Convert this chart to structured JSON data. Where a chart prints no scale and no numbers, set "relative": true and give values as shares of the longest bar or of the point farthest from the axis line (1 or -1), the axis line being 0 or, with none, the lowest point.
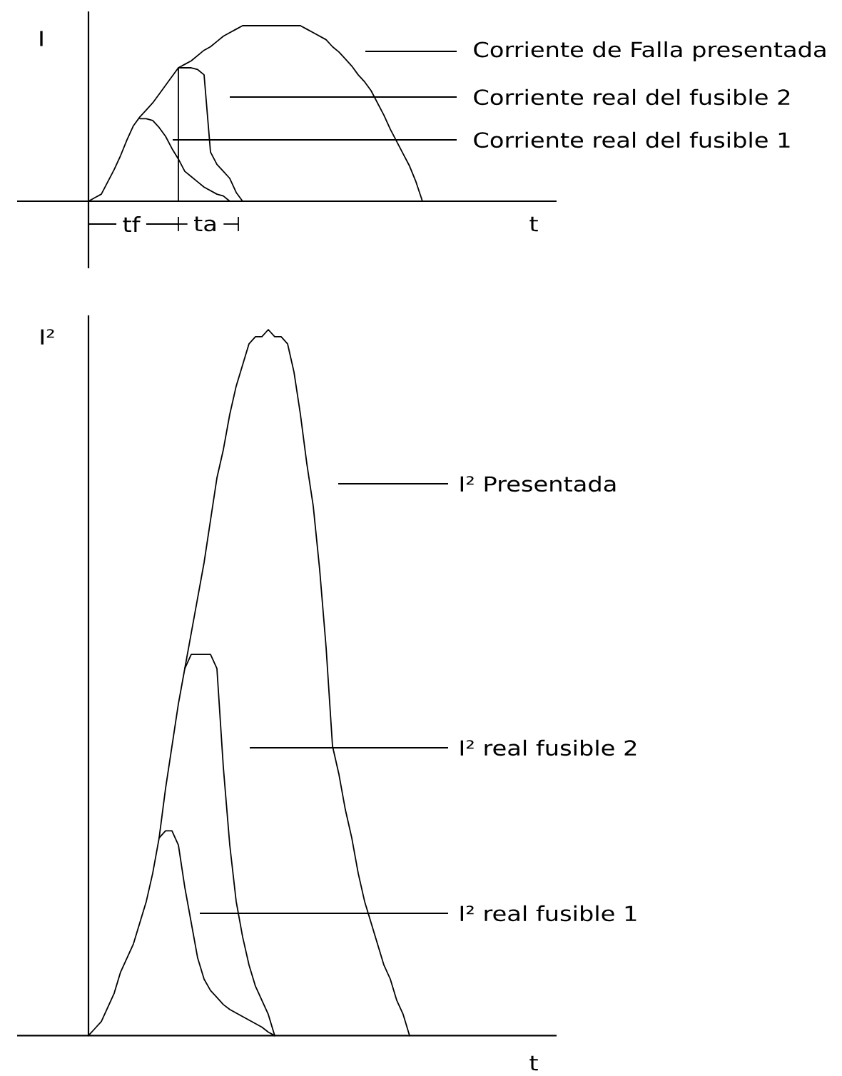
{
  "chart_data": [
    {
      "type": "line",
      "relative": true,
      "ylabel": "I",
      "xlabel": "t",
      "categories": [
        null,
        null,
        null,
        null,
        null,
        null,
        null,
        null,
        null,
        null,
        null,
        null,
        null,
        null,
        null,
        null,
        null,
        null,
        null,
        null,
        null,
        null,
        null,
        null,
        null,
        null,
        null,
        null,
        null,
        null,
        null,
        null,
        null,
        null,
        null,
        null,
        null,
        null,
        null,
        null,
        null,
        null,
        null,
        null,
        null,
        null,
        null,
        null,
        null,
        null,
        null,
        null,
        null,
        null,
        null,
        null,
        null,
        null
      ],
      "series": [
        {
          "name": "Corriente de Falla presentada",
          "color": "#000000",
          "values": [
            0,
            0.02,
            0.04,
            0.11,
            0.18,
            0.26,
            0.35,
            0.43,
            0.48,
            0.52,
            0.56,
            0.61,
            0.66,
            0.71,
            0.76,
            0.78,
            0.8,
            0.83,
            0.86,
            0.88,
            0.91,
            0.94,
            0.96,
            0.98,
            1,
            1,
            1,
            1,
            1,
            1,
            1,
            1,
            1,
            1,
            0.98,
            0.96,
            0.94,
            0.92,
            0.88,
            0.85,
            0.81,
            0.77,
            0.72,
            0.68,
            0.63,
            0.56,
            0.49,
            0.41,
            0.34,
            0.27,
            0.2,
            0.11,
            0,
            0,
            0,
            0,
            0,
            0
          ]
        },
        {
          "name": "Corriente real del fusible 2",
          "color": "#000000",
          "values": [
            null,
            null,
            null,
            null,
            null,
            null,
            null,
            null,
            null,
            null,
            null,
            null,
            null,
            null,
            0.76,
            0.76,
            0.76,
            0.75,
            0.72,
            0.28,
            0.21,
            0.17,
            0.13,
            0.05,
            0,
            null,
            null,
            null,
            null,
            null,
            null,
            null,
            null,
            null,
            null,
            null,
            null,
            null,
            null,
            null,
            null,
            null,
            null,
            null,
            null,
            null,
            null,
            null,
            null,
            null,
            null,
            null,
            null,
            null,
            null,
            null,
            null,
            null
          ]
        },
        {
          "name": "Corriente real del fusible 1",
          "color": "#000000",
          "values": [
            null,
            null,
            null,
            null,
            null,
            null,
            null,
            null,
            0.47,
            0.47,
            0.46,
            0.42,
            0.37,
            0.3,
            0.24,
            0.17,
            0.14,
            0.11,
            0.08,
            0.06,
            0.04,
            0.03,
            0,
            null,
            null,
            null,
            null,
            null,
            null,
            null,
            null,
            null,
            null,
            null,
            null,
            null,
            null,
            null,
            null,
            null,
            null,
            null,
            null,
            null,
            null,
            null,
            null,
            null,
            null,
            null,
            null,
            null,
            null,
            null,
            null,
            null,
            null,
            null
          ]
        }
      ],
      "annotations": [
        "tf",
        "ta"
      ]
    },
    {
      "type": "line",
      "relative": true,
      "ylabel": "I²",
      "xlabel": "t",
      "categories": [
        null,
        null,
        null,
        null,
        null,
        null,
        null,
        null,
        null,
        null,
        null,
        null,
        null,
        null,
        null,
        null,
        null,
        null,
        null,
        null,
        null,
        null,
        null,
        null,
        null,
        null,
        null,
        null,
        null,
        null,
        null,
        null,
        null,
        null,
        null,
        null,
        null,
        null,
        null,
        null,
        null,
        null,
        null,
        null,
        null,
        null,
        null,
        null,
        null,
        null,
        null
      ],
      "series": [
        {
          "name": "I² Presentada",
          "color": "#000000",
          "values": [
            0,
            0.01,
            0.02,
            0.04,
            0.06,
            0.09,
            0.11,
            0.13,
            0.16,
            0.19,
            0.23,
            0.28,
            0.35,
            0.41,
            0.47,
            0.52,
            0.57,
            0.62,
            0.67,
            0.73,
            0.79,
            0.83,
            0.88,
            0.92,
            0.95,
            0.98,
            0.99,
            0.99,
            1,
            0.99,
            0.99,
            0.98,
            0.94,
            0.88,
            0.81,
            0.75,
            0.66,
            0.55,
            0.41,
            0.37,
            0.32,
            0.28,
            0.23,
            0.19,
            0.16,
            0.13,
            0.1,
            0.08,
            0.05,
            0.03,
            0
          ]
        },
        {
          "name": "I² real fusible 2",
          "color": "#000000",
          "values": [
            null,
            null,
            null,
            null,
            null,
            null,
            null,
            null,
            null,
            null,
            null,
            null,
            null,
            null,
            null,
            0.52,
            0.54,
            0.54,
            0.54,
            0.54,
            0.52,
            0.38,
            0.27,
            0.19,
            0.14,
            0.1,
            0.07,
            0.05,
            0.03,
            0,
            null,
            null,
            null,
            null,
            null,
            null,
            null,
            null,
            null,
            null,
            null,
            null,
            null,
            null,
            null,
            null,
            null,
            null,
            null,
            null,
            null
          ]
        },
        {
          "name": "I² real fusible 1",
          "color": "#000000",
          "values": [
            null,
            null,
            null,
            null,
            null,
            null,
            null,
            null,
            null,
            null,
            null,
            0.28,
            0.29,
            0.29,
            0.27,
            0.21,
            0.16,
            0.11,
            0.08,
            0.064,
            0.054,
            0.044,
            0.037,
            0.032,
            0.027,
            0.022,
            0.017,
            0.012,
            0.005,
            0,
            null,
            null,
            null,
            null,
            null,
            null,
            null,
            null,
            null,
            null,
            null,
            null,
            null,
            null,
            null,
            null,
            null,
            null,
            null,
            null,
            null
          ]
        }
      ]
    }
  ]
}
